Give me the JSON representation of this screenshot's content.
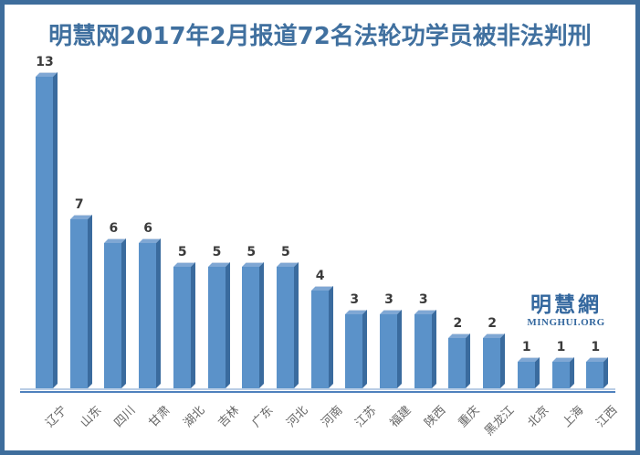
{
  "title": "明慧网2017年2月报道72名法轮功学员被非法判刑",
  "watermark": {
    "cjk": "明慧網",
    "latin": "MINGHUI.ORG"
  },
  "chart_data": {
    "type": "bar",
    "style": "3d-column",
    "title": "明慧网2017年2月报道72名法轮功学员被非法判刑",
    "categories": [
      "辽宁",
      "山东",
      "四川",
      "甘肃",
      "湖北",
      "吉林",
      "广东",
      "河北",
      "河南",
      "江苏",
      "福建",
      "陕西",
      "重庆",
      "黑龙江",
      "北京",
      "上海",
      "江西"
    ],
    "values": [
      13,
      7,
      6,
      6,
      5,
      5,
      5,
      5,
      4,
      3,
      3,
      3,
      2,
      2,
      1,
      1,
      1
    ],
    "total": 72,
    "xlabel": "",
    "ylabel": "",
    "ylim": [
      0,
      13
    ],
    "grid": false,
    "legend": false,
    "data_labels": true,
    "category_label_rotation_deg": -45
  },
  "colors": {
    "border": "#3E6D9C",
    "title": "#40709F",
    "bar_front": "#5B92C9",
    "bar_side": "#3A6B9E",
    "bar_top": "#7FA7D4",
    "axis_line": "#4F81BD",
    "axis_line_light": "#B9CDE5",
    "value_label": "#3B3B3B",
    "category_label": "#666666",
    "watermark": "#33679E",
    "background": "#FFFFFF"
  }
}
